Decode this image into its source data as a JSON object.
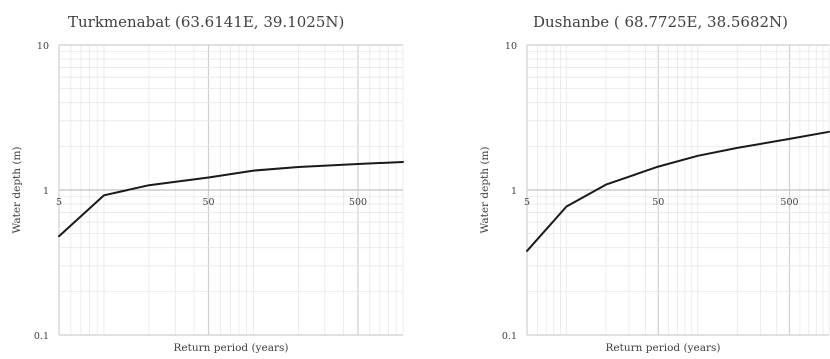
{
  "chart_data": [
    {
      "type": "line",
      "title": "Turkmenabat (63.6141E, 39.1025N)",
      "xlabel": "Return period (years)",
      "ylabel": "Water depth (m)",
      "x_scale": "log",
      "y_scale": "log",
      "xlim": [
        5,
        1000
      ],
      "ylim": [
        0.1,
        10
      ],
      "x_tick_labels": [
        "5",
        "50",
        "500"
      ],
      "y_tick_labels": [
        "10",
        "1",
        "0.1"
      ],
      "grid": true,
      "legend": "none",
      "line_color": "#1a1a1a",
      "series": [
        {
          "x": [
            5,
            10,
            20,
            50,
            100,
            200,
            500,
            1000
          ],
          "y": [
            0.48,
            0.92,
            1.08,
            1.22,
            1.36,
            1.44,
            1.51,
            1.56
          ]
        }
      ]
    },
    {
      "type": "line",
      "title": "Dushanbe ( 68.7725E, 38.5682N)",
      "xlabel": "Return period (years)",
      "ylabel": "Water depth (m)",
      "x_scale": "log",
      "y_scale": "log",
      "xlim": [
        5,
        1000
      ],
      "ylim": [
        0.1,
        10
      ],
      "x_tick_labels": [
        "5",
        "50",
        "500"
      ],
      "y_tick_labels": [
        "10",
        "1",
        "0.1"
      ],
      "grid": true,
      "legend": "none",
      "line_color": "#1a1a1a",
      "series": [
        {
          "x": [
            5,
            10,
            20,
            50,
            100,
            200,
            500,
            1000
          ],
          "y": [
            0.38,
            0.77,
            1.09,
            1.45,
            1.72,
            1.95,
            2.25,
            2.52
          ]
        }
      ]
    }
  ]
}
